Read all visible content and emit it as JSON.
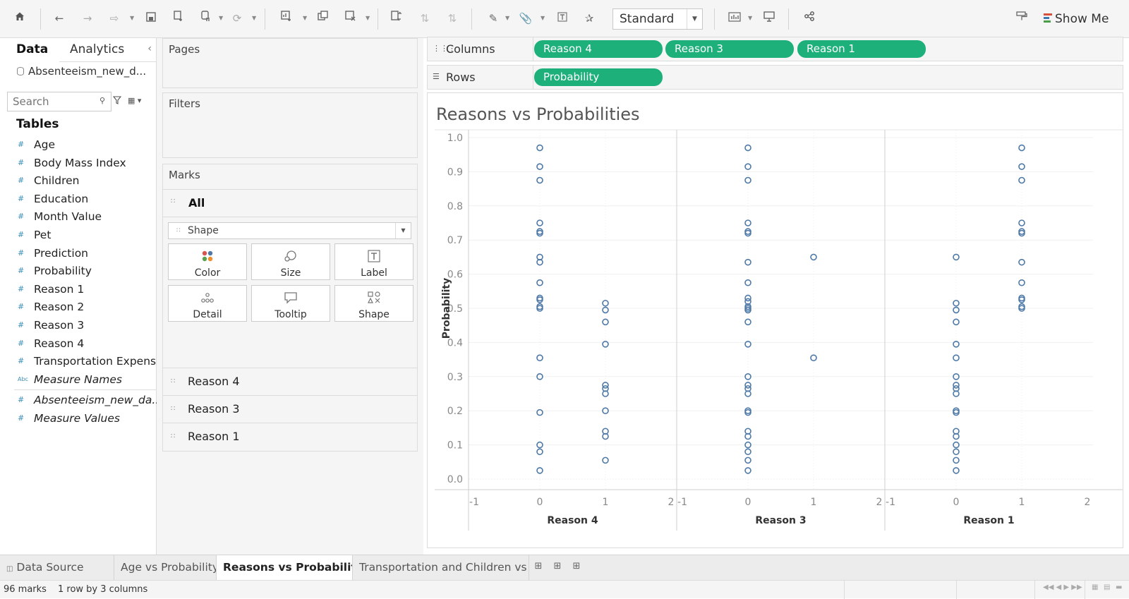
{
  "toolbar": {
    "fit_mode": "Standard",
    "show_me_label": "Show Me",
    "icons": [
      "home-icon",
      "undo-icon",
      "redo-icon",
      "replay-icon",
      "save-icon",
      "new-datasource-icon",
      "pause-icon",
      "refresh-icon",
      "new-worksheet-icon",
      "duplicate-icon",
      "clear-icon",
      "swap-icon",
      "sort-ascending-icon",
      "sort-descending-icon",
      "highlight-icon",
      "group-icon",
      "label-icon",
      "pin-icon",
      "cards-icon",
      "presentation-icon",
      "share-icon",
      "tooltip-brush-icon"
    ]
  },
  "data_pane": {
    "tabs": [
      "Data",
      "Analytics"
    ],
    "datasource": "Absenteeism_new_d...",
    "search_placeholder": "Search",
    "tables_heading": "Tables",
    "fields": [
      {
        "name": "Age",
        "type": "#"
      },
      {
        "name": "Body Mass Index",
        "type": "#"
      },
      {
        "name": "Children",
        "type": "#"
      },
      {
        "name": "Education",
        "type": "#"
      },
      {
        "name": "Month Value",
        "type": "#"
      },
      {
        "name": "Pet",
        "type": "#"
      },
      {
        "name": "Prediction",
        "type": "#"
      },
      {
        "name": "Probability",
        "type": "#"
      },
      {
        "name": "Reason 1",
        "type": "#"
      },
      {
        "name": "Reason 2",
        "type": "#"
      },
      {
        "name": "Reason 3",
        "type": "#"
      },
      {
        "name": "Reason 4",
        "type": "#"
      },
      {
        "name": "Transportation Expense",
        "type": "#"
      },
      {
        "name": "Measure Names",
        "type": "Abc"
      }
    ],
    "extra_fields": [
      {
        "name": "Absenteeism_new_da...",
        "type": "#"
      },
      {
        "name": "Measure Values",
        "type": "#"
      }
    ]
  },
  "cards": {
    "pages_title": "Pages",
    "filters_title": "Filters",
    "marks_title": "Marks",
    "marks_all": "All",
    "mark_type": "Shape",
    "buttons": [
      "Color",
      "Size",
      "Label",
      "Detail",
      "Tooltip",
      "Shape"
    ],
    "mark_fields": [
      "Reason 4",
      "Reason 3",
      "Reason 1"
    ]
  },
  "shelves": {
    "columns_label": "Columns",
    "rows_label": "Rows",
    "columns_pills": [
      "Reason 4",
      "Reason 3",
      "Reason 1"
    ],
    "rows_pills": [
      "Probability"
    ]
  },
  "viz": {
    "title": "Reasons vs Probabilities"
  },
  "chart_data": {
    "type": "scatter",
    "title": "Reasons vs Probabilities",
    "ylabel": "Probability",
    "ylim": [
      0.0,
      1.0
    ],
    "yticks": [
      "0.0",
      "0.1",
      "0.2",
      "0.3",
      "0.4",
      "0.5",
      "0.6",
      "0.7",
      "0.8",
      "0.9",
      "1.0"
    ],
    "xlim": [
      -1,
      2
    ],
    "xticks": [
      "-1",
      "0",
      "1",
      "2"
    ],
    "marker_color": "#4e79a7",
    "marker_shape": "open-circle",
    "panes": [
      {
        "xlabel": "Reason 4",
        "points": [
          {
            "x": 0,
            "y": [
              0.97,
              0.915,
              0.875,
              0.75,
              0.725,
              0.72,
              0.65,
              0.635,
              0.575,
              0.53,
              0.525,
              0.505,
              0.5,
              0.355,
              0.3,
              0.195,
              0.1,
              0.08,
              0.025
            ]
          },
          {
            "x": 1,
            "y": [
              0.515,
              0.495,
              0.46,
              0.395,
              0.275,
              0.265,
              0.25,
              0.2,
              0.14,
              0.125,
              0.055
            ]
          }
        ]
      },
      {
        "xlabel": "Reason 3",
        "points": [
          {
            "x": 0,
            "y": [
              0.97,
              0.915,
              0.875,
              0.75,
              0.725,
              0.72,
              0.635,
              0.575,
              0.53,
              0.52,
              0.505,
              0.5,
              0.495,
              0.46,
              0.395,
              0.3,
              0.275,
              0.265,
              0.25,
              0.2,
              0.195,
              0.14,
              0.125,
              0.1,
              0.08,
              0.055,
              0.025
            ]
          },
          {
            "x": 1,
            "y": [
              0.65,
              0.355
            ]
          }
        ]
      },
      {
        "xlabel": "Reason 1",
        "points": [
          {
            "x": 0,
            "y": [
              0.65,
              0.515,
              0.495,
              0.46,
              0.395,
              0.355,
              0.3,
              0.275,
              0.265,
              0.25,
              0.2,
              0.195,
              0.14,
              0.125,
              0.1,
              0.08,
              0.055,
              0.025
            ]
          },
          {
            "x": 1,
            "y": [
              0.97,
              0.915,
              0.875,
              0.75,
              0.725,
              0.72,
              0.635,
              0.575,
              0.53,
              0.525,
              0.505,
              0.5
            ]
          }
        ]
      }
    ]
  },
  "sheet_tabs": {
    "data_source": "Data Source",
    "tabs": [
      "Age vs Probability",
      "Reasons vs Probabilities",
      "Transportation and Children vs ..."
    ],
    "active": "Reasons vs Probabilities"
  },
  "status": {
    "marks": "96 marks",
    "layout": "1 row by 3 columns"
  }
}
